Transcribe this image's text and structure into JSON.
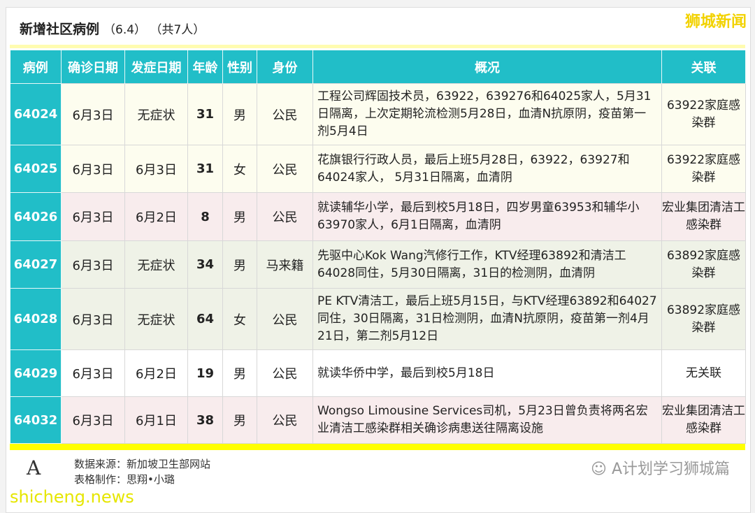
{
  "title": {
    "main": "新增社区病例",
    "sub": "（6.4）  （共7人）",
    "brand": "狮城新闻"
  },
  "headers": [
    "病例",
    "确诊日期",
    "发症日期",
    "年龄",
    "性别",
    "身份",
    "概况",
    "关联"
  ],
  "rows": [
    {
      "id": "64024",
      "confirm": "6月3日",
      "onset": "无症状",
      "age": "31",
      "sex": "男",
      "status": "公民",
      "desc": "工程公司辉固技术员，63922，639276和64025家人，5月31日隔离，上次定期轮流检测5月28日，血清N抗原阴，疫苗第一剂5月4日",
      "link": "63922家庭感染群"
    },
    {
      "id": "64025",
      "confirm": "6月3日",
      "onset": "6月3日",
      "age": "31",
      "sex": "女",
      "status": "公民",
      "desc": "花旗银行行政人员，最后上班5月28日，63922，63927和64024家人， 5月31日隔离，血清阴",
      "link": "63922家庭感染群"
    },
    {
      "id": "64026",
      "confirm": "6月3日",
      "onset": "6月2日",
      "age": "8",
      "sex": "男",
      "status": "公民",
      "desc": "就读辅华小学，最后到校5月18日，四岁男童63953和辅华小63970家人，6月1日隔离，血清阴",
      "link": "宏业集团清洁工感染群"
    },
    {
      "id": "64027",
      "confirm": "6月3日",
      "onset": "无症状",
      "age": "34",
      "sex": "男",
      "status": "马来籍",
      "desc": "先驱中心Kok Wang汽修行工作，KTV经理63892和清洁工64028同住，5月30日隔离，31日的检测阴，血清阴",
      "link": "63892家庭感染群"
    },
    {
      "id": "64028",
      "confirm": "6月3日",
      "onset": "无症状",
      "age": "64",
      "sex": "女",
      "status": "公民",
      "desc": "PE KTV清洁工，最后上班5月15日，与KTV经理63892和64027同住，30日隔离，31日检测阴，血清N抗原阴，疫苗第一剂4月21日，第二剂5月12日",
      "link": "63892家庭感染群"
    },
    {
      "id": "64029",
      "confirm": "6月3日",
      "onset": "6月2日",
      "age": "19",
      "sex": "男",
      "status": "公民",
      "desc": "就读华侨中学，最后到校5月18日",
      "link": "无关联"
    },
    {
      "id": "64032",
      "confirm": "6月3日",
      "onset": "6月1日",
      "age": "38",
      "sex": "男",
      "status": "公民",
      "desc": "Wongso Limousine Services司机，5月23日曾负责将两名宏业清洁工感染群相关确诊病患送往隔离设施",
      "link": "宏业集团清洁工感染群"
    }
  ],
  "footer": {
    "source": "数据来源：新加坡卫生部网站",
    "maker": "表格制作：思翔•小璐",
    "wechat": "A计划学习狮城篇",
    "watermark": "shicheng.news"
  }
}
